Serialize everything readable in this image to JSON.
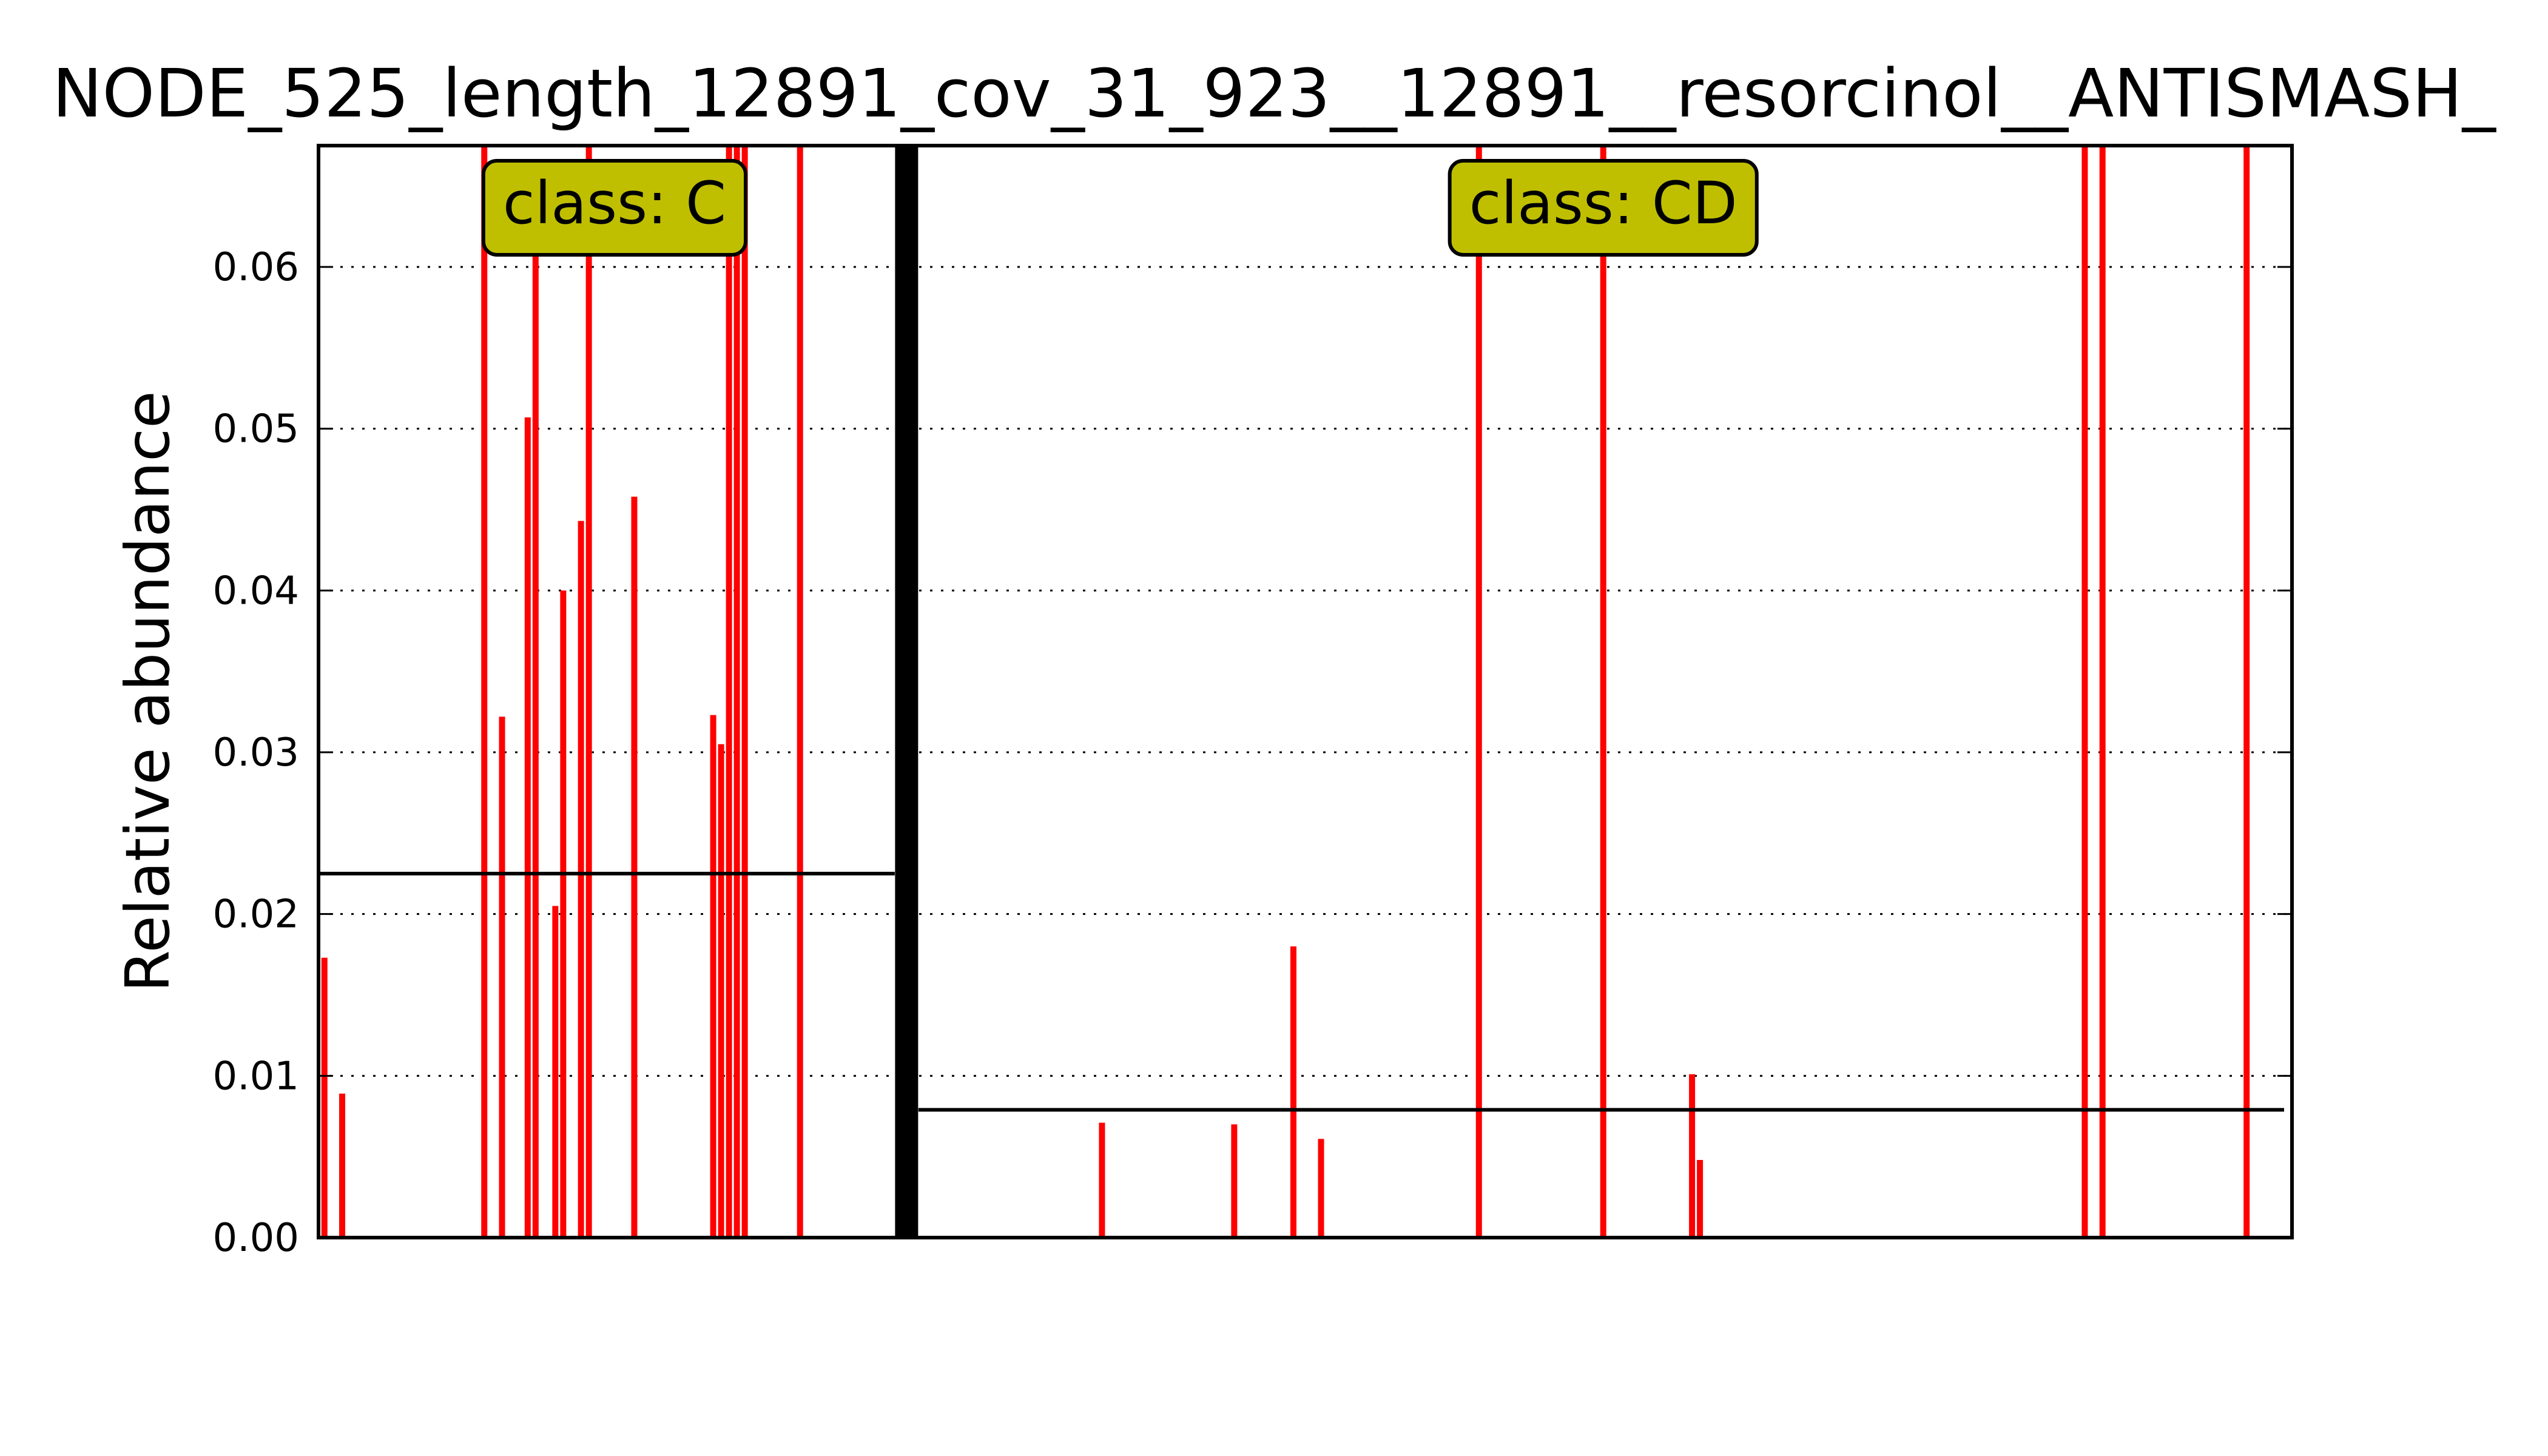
{
  "chart_data": {
    "type": "bar",
    "title": "NODE_525_length_12891_cov_31_923__12891__resorcinol__ANTISMASH_",
    "xlabel": "",
    "ylabel": "Relative abundance",
    "ylim": [
      0,
      0.0675
    ],
    "yticks": [
      0.0,
      0.01,
      0.02,
      0.03,
      0.04,
      0.05,
      0.06
    ],
    "ytick_labels": [
      "0.00",
      "0.01",
      "0.02",
      "0.03",
      "0.04",
      "0.05",
      "0.06"
    ],
    "xlim": [
      0,
      1000
    ],
    "grid": "y-dotted",
    "bar_color": "#ff0000",
    "divider_x": 298,
    "groups": [
      {
        "label": "class: C",
        "label_x": 150,
        "mean": 0.0225,
        "mean_range": [
          0,
          292
        ],
        "color": "#bfbf00",
        "bars": [
          {
            "x": 3,
            "value": 0.0173
          },
          {
            "x": 12,
            "value": 0.0089
          },
          {
            "x": 84,
            "value": 0.0675
          },
          {
            "x": 93,
            "value": 0.0322
          },
          {
            "x": 106,
            "value": 0.0507
          },
          {
            "x": 110,
            "value": 0.061
          },
          {
            "x": 120,
            "value": 0.0205
          },
          {
            "x": 124,
            "value": 0.04
          },
          {
            "x": 133,
            "value": 0.0443
          },
          {
            "x": 137,
            "value": 0.0675
          },
          {
            "x": 160,
            "value": 0.0458
          },
          {
            "x": 200,
            "value": 0.0323
          },
          {
            "x": 204,
            "value": 0.0305
          },
          {
            "x": 208,
            "value": 0.0675
          },
          {
            "x": 212,
            "value": 0.0675
          },
          {
            "x": 216,
            "value": 0.0675
          },
          {
            "x": 244,
            "value": 0.0675
          }
        ]
      },
      {
        "label": "class: CD",
        "label_x": 651,
        "mean": 0.0079,
        "mean_range": [
          304,
          996
        ],
        "color": "#bfbf00",
        "bars": [
          {
            "x": 397,
            "value": 0.0071
          },
          {
            "x": 464,
            "value": 0.007
          },
          {
            "x": 494,
            "value": 0.018
          },
          {
            "x": 508,
            "value": 0.0061
          },
          {
            "x": 588,
            "value": 0.0675
          },
          {
            "x": 651,
            "value": 0.0675
          },
          {
            "x": 696,
            "value": 0.0101
          },
          {
            "x": 700,
            "value": 0.0048
          },
          {
            "x": 895,
            "value": 0.0675
          },
          {
            "x": 904,
            "value": 0.0675
          },
          {
            "x": 977,
            "value": 0.0675
          }
        ]
      }
    ]
  }
}
